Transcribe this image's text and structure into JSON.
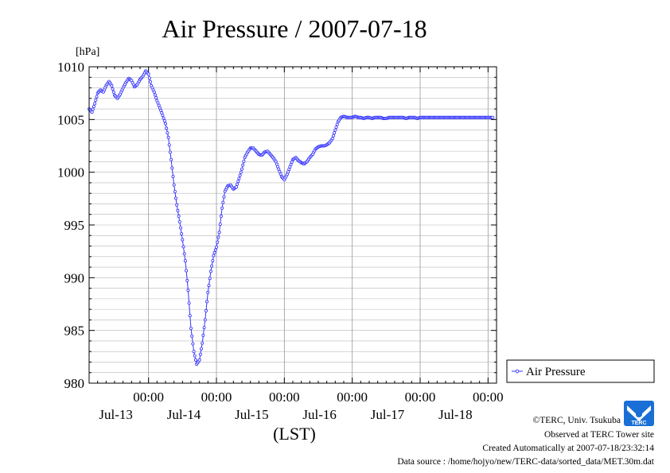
{
  "chart_data": {
    "type": "line",
    "title": "Air Pressure / 2007-07-18",
    "ylabel": "[hPa]",
    "xlabel": "(LST)",
    "ylim": [
      980,
      1010
    ],
    "xlim_hours": [
      0,
      144
    ],
    "y_ticks": [
      980,
      985,
      990,
      995,
      1000,
      1005,
      1010
    ],
    "x_ticks": [
      {
        "hour": 21,
        "time": "00:00",
        "date": "Jul-13"
      },
      {
        "hour": 45,
        "time": "00:00",
        "date": "Jul-14"
      },
      {
        "hour": 69,
        "time": "00:00",
        "date": "Jul-15"
      },
      {
        "hour": 93,
        "time": "00:00",
        "date": "Jul-16"
      },
      {
        "hour": 117,
        "time": "00:00",
        "date": "Jul-17"
      },
      {
        "hour": 141,
        "time": "00:00",
        "date": "Jul-18"
      }
    ],
    "grid": true,
    "legend": {
      "position": "right",
      "entries": [
        "Air Pressure"
      ]
    },
    "series": [
      {
        "name": "Air Pressure",
        "color": "#3333ff",
        "hours": [
          0,
          1,
          2,
          3,
          4,
          5,
          6,
          7,
          8,
          9,
          10,
          11,
          12,
          13,
          14,
          15,
          16,
          17,
          18,
          19,
          20,
          21,
          22,
          23,
          24,
          25,
          26,
          27,
          28,
          29,
          30,
          31,
          32,
          33,
          34,
          35,
          36,
          37,
          38,
          39,
          40,
          41,
          42,
          43,
          44,
          45,
          46,
          47,
          48,
          49,
          50,
          51,
          52,
          53,
          54,
          55,
          56,
          57,
          58,
          59,
          60,
          61,
          62,
          63,
          64,
          65,
          66,
          67,
          68,
          69,
          70,
          71,
          72,
          73,
          74,
          75,
          76,
          77,
          78,
          79,
          80,
          81,
          82,
          83,
          84,
          85,
          86,
          87,
          88,
          89,
          90,
          91,
          92,
          93,
          94,
          95,
          96,
          97,
          98,
          99,
          100,
          101,
          102,
          103,
          104,
          105,
          106,
          107,
          108,
          109,
          110,
          111,
          112,
          113,
          114,
          115,
          116,
          117,
          118,
          119,
          120,
          121,
          122,
          123,
          124,
          125,
          126,
          127,
          128,
          129,
          130,
          131,
          132,
          133,
          134,
          135,
          136,
          137,
          138,
          139,
          140,
          141,
          142,
          143
        ],
        "values": [
          1006.0,
          1005.7,
          1006.5,
          1007.5,
          1007.8,
          1007.6,
          1008.2,
          1008.6,
          1008.2,
          1007.3,
          1007.0,
          1007.4,
          1008.0,
          1008.5,
          1008.9,
          1008.7,
          1008.1,
          1008.3,
          1008.8,
          1009.1,
          1009.6,
          1009.3,
          1008.2,
          1007.6,
          1006.8,
          1006.1,
          1005.4,
          1004.6,
          1003.3,
          1001.2,
          998.8,
          996.9,
          995.3,
          993.6,
          991.6,
          988.8,
          985.2,
          983.0,
          981.8,
          982.2,
          983.8,
          986.0,
          988.6,
          990.6,
          992.1,
          992.9,
          994.3,
          996.6,
          998.2,
          998.7,
          998.8,
          998.4,
          998.6,
          999.4,
          1000.3,
          1001.4,
          1001.9,
          1002.3,
          1002.3,
          1002.0,
          1001.7,
          1001.6,
          1001.9,
          1002.0,
          1001.7,
          1001.4,
          1001.0,
          1000.3,
          999.6,
          999.3,
          999.8,
          1000.5,
          1001.2,
          1001.4,
          1001.1,
          1000.9,
          1000.8,
          1001.0,
          1001.4,
          1001.7,
          1002.2,
          1002.4,
          1002.5,
          1002.5,
          1002.6,
          1002.8,
          1003.2,
          1004.0,
          1004.8,
          1005.2,
          1005.3,
          1005.2,
          1005.2,
          1005.2,
          1005.3,
          1005.2,
          1005.2,
          1005.1,
          1005.2,
          1005.2,
          1005.1,
          1005.2,
          1005.2,
          1005.2,
          1005.1,
          1005.1,
          1005.2,
          1005.2,
          1005.2,
          1005.2,
          1005.2,
          1005.2,
          1005.1,
          1005.2,
          1005.2,
          1005.2,
          1005.1,
          1005.2,
          1005.2,
          1005.2,
          1005.2,
          1005.2,
          1005.2,
          1005.2,
          1005.2,
          1005.2,
          1005.2,
          1005.2,
          1005.2,
          1005.2,
          1005.2,
          1005.2,
          1005.2,
          1005.2,
          1005.2,
          1005.2,
          1005.2,
          1005.2,
          1005.2,
          1005.2,
          1005.2,
          1005.2,
          1005.2,
          1005.2
        ]
      }
    ]
  },
  "footer": {
    "copyright": "©TERC, Univ. Tsukuba",
    "observed": "Observed at TERC Tower site",
    "created": "Created Automatically at 2007-07-18/23:32:14",
    "source": "Data source : /home/hojyo/new/TERC-data/sorted_data/MET.30m.dat",
    "logo_text": "TERC"
  }
}
